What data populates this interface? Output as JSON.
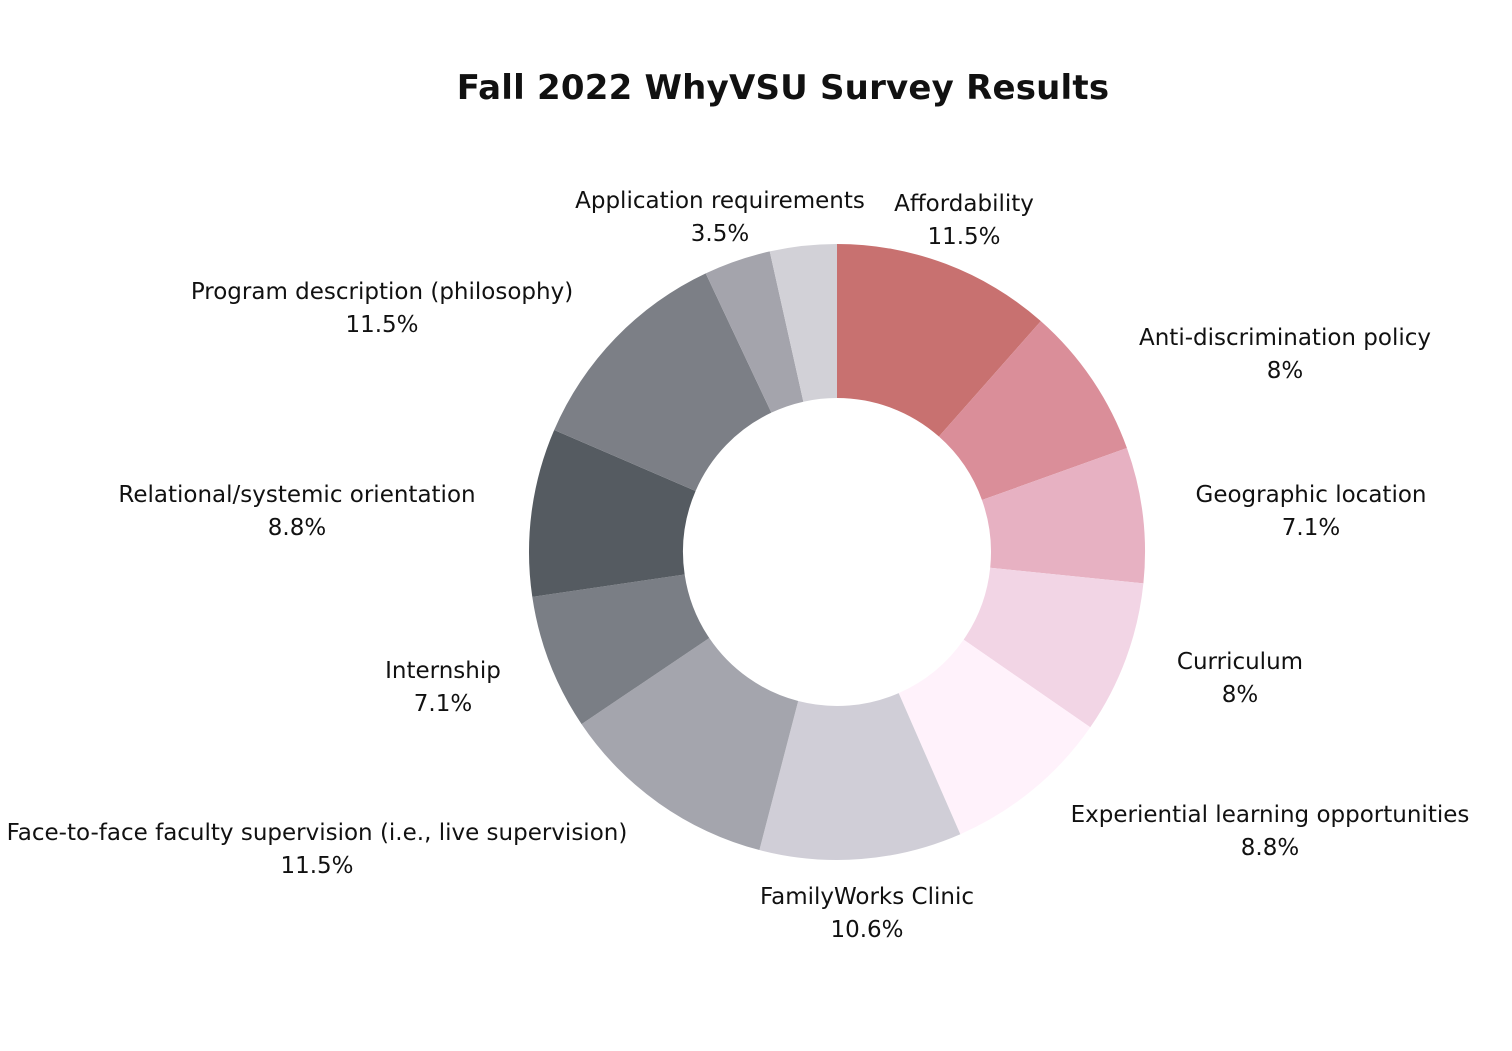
{
  "chart_data": {
    "type": "pie",
    "title": "Fall 2022 WhyVSU Survey Results",
    "start_angle_deg": 0,
    "direction": "clockwise",
    "slices": [
      {
        "label": "Affordability",
        "value": 11.5,
        "value_text": "11.5%",
        "color": "#c87170"
      },
      {
        "label": "Anti-discrimination policy",
        "value": 8,
        "value_text": "8%",
        "color": "#da8e99"
      },
      {
        "label": "Geographic location",
        "value": 7.1,
        "value_text": "7.1%",
        "color": "#e7b1c2"
      },
      {
        "label": "Curriculum",
        "value": 8,
        "value_text": "8%",
        "color": "#f2d5e5"
      },
      {
        "label": "Experiential learning opportunities",
        "value": 8.8,
        "value_text": "8.8%",
        "color": "#fff2fb"
      },
      {
        "label": "FamilyWorks Clinic",
        "value": 10.6,
        "value_text": "10.6%",
        "color": "#d0ced7"
      },
      {
        "label": "Face-to-face faculty supervision (i.e., live supervision)",
        "value": 11.5,
        "value_text": "11.5%",
        "color": "#a4a5ad"
      },
      {
        "label": "Internship",
        "value": 7.1,
        "value_text": "7.1%",
        "color": "#7a7e85"
      },
      {
        "label": "Relational/systemic orientation",
        "value": 8.8,
        "value_text": "8.8%",
        "color": "#555b61"
      },
      {
        "label": "Program description (philosophy)",
        "value": 11.5,
        "value_text": "11.5%",
        "color": "#7c7f86"
      },
      {
        "label": "Application requirements",
        "value": 3.5,
        "value_text": "3.5%",
        "color": "#a4a4ac"
      },
      {
        "label": "",
        "value": 3.5,
        "value_text": "",
        "color": "#d2d1d7"
      }
    ]
  }
}
